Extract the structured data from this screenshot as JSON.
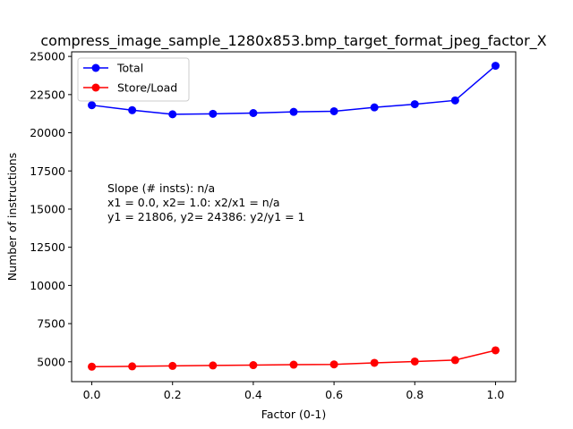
{
  "chart_data": {
    "type": "line",
    "title": "compress_image_sample_1280x853.bmp_target_format_jpeg_factor_X",
    "xlabel": "Factor (0-1)",
    "ylabel": "Number of instructions",
    "xlim": [
      -0.05,
      1.05
    ],
    "ylim": [
      3700,
      25300
    ],
    "xticks": [
      0.0,
      0.2,
      0.4,
      0.6,
      0.8,
      1.0
    ],
    "xtick_labels": [
      "0.0",
      "0.2",
      "0.4",
      "0.6",
      "0.8",
      "1.0"
    ],
    "yticks": [
      5000,
      7500,
      10000,
      12500,
      15000,
      17500,
      20000,
      22500,
      25000
    ],
    "ytick_labels": [
      "5000",
      "7500",
      "10000",
      "12500",
      "15000",
      "17500",
      "20000",
      "22500",
      "25000"
    ],
    "x": [
      0.0,
      0.1,
      0.2,
      0.3,
      0.4,
      0.5,
      0.6,
      0.7,
      0.8,
      0.9,
      1.0
    ],
    "series": [
      {
        "name": "Total",
        "color": "#0000ff",
        "values": [
          21806,
          21480,
          21210,
          21240,
          21290,
          21370,
          21410,
          21660,
          21870,
          22120,
          24386
        ]
      },
      {
        "name": "Store/Load",
        "color": "#ff0000",
        "values": [
          4680,
          4700,
          4730,
          4760,
          4780,
          4810,
          4830,
          4930,
          5020,
          5110,
          5750
        ]
      }
    ],
    "legend_position": "top-left",
    "grid": false,
    "annotation_lines": [
      "Slope (# insts): n/a",
      "x1 = 0.0, x2= 1.0: x2/x1 = n/a",
      "y1 = 21806, y2= 24386: y2/y1 = 1"
    ]
  }
}
